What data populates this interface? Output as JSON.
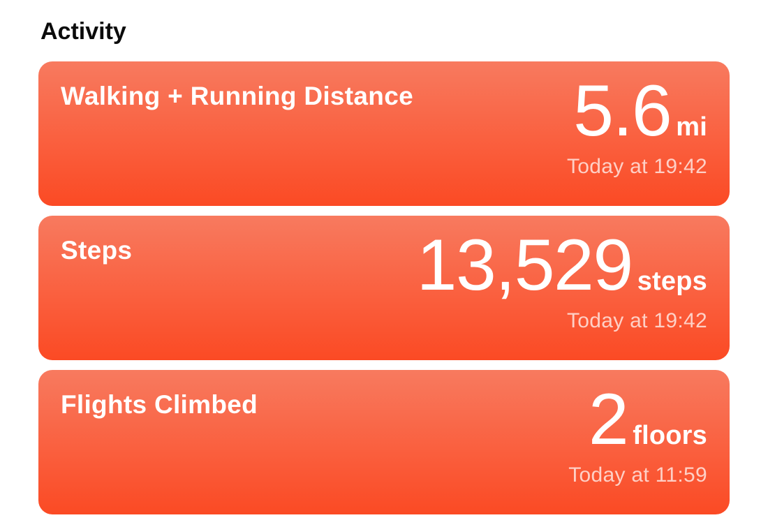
{
  "header": {
    "title": "Activity"
  },
  "colors": {
    "card_gradient_top": "#F87A5F",
    "card_gradient_bottom": "#FB4A24",
    "timestamp": "rgba(255,255,255,0.72)",
    "heading": "#0b0b0b",
    "page_background": "#ffffff",
    "card_text": "#ffffff"
  },
  "cards": [
    {
      "title": "Walking + Running Distance",
      "value": "5.6",
      "unit": "mi",
      "timestamp": "Today at 19:42"
    },
    {
      "title": "Steps",
      "value": "13,529",
      "unit": "steps",
      "timestamp": "Today at 19:42"
    },
    {
      "title": "Flights Climbed",
      "value": "2",
      "unit": "floors",
      "timestamp": "Today at 11:59"
    }
  ]
}
